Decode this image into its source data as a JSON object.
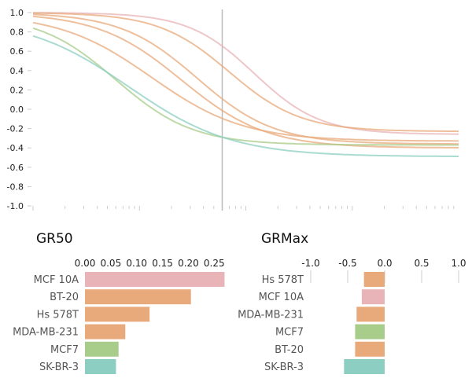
{
  "colors": {
    "pink": "#e8b4b8",
    "orange": "#e8a97b",
    "green": "#a8cc8a",
    "teal": "#8ccfc2",
    "vline": "#bbbbbb",
    "axis": "#cccccc"
  },
  "chart_data": [
    {
      "type": "line",
      "name": "dose-response",
      "ylim": [
        -1.0,
        1.0
      ],
      "yticks": [
        "1.0",
        "0.8",
        "0.6",
        "0.4",
        "0.2",
        "0.0",
        "-0.2",
        "-0.4",
        "-0.6",
        "-0.8",
        "-1.0"
      ],
      "xscale": "log",
      "xlim": [
        0.001,
        10
      ],
      "vline_x": 0.06,
      "grid": false,
      "series": [
        {
          "color": "pink",
          "values": {
            "top": 1.0,
            "bottom": -0.26,
            "ec50": 0.12,
            "hill": 1.4
          }
        },
        {
          "color": "orange",
          "values": {
            "top": 1.0,
            "bottom": -0.23,
            "ec50": 0.07,
            "hill": 1.3
          }
        },
        {
          "color": "orange",
          "values": {
            "top": 1.0,
            "bottom": -0.36,
            "ec50": 0.035,
            "hill": 1.2
          }
        },
        {
          "color": "orange",
          "values": {
            "top": 1.0,
            "bottom": -0.4,
            "ec50": 0.025,
            "hill": 1.1
          }
        },
        {
          "color": "orange",
          "values": {
            "top": 0.99,
            "bottom": -0.33,
            "ec50": 0.013,
            "hill": 1.0
          }
        },
        {
          "color": "green",
          "values": {
            "top": 0.98,
            "bottom": -0.37,
            "ec50": 0.006,
            "hill": 1.2
          }
        },
        {
          "color": "teal",
          "values": {
            "top": 0.95,
            "bottom": -0.49,
            "ec50": 0.008,
            "hill": 0.9
          }
        }
      ]
    },
    {
      "type": "bar",
      "name": "GR50",
      "title": "GR50",
      "xlim": [
        0.0,
        0.28
      ],
      "xticks": [
        "0.00",
        "0.05",
        "0.10",
        "0.15",
        "0.20",
        "0.25"
      ],
      "xtick_values": [
        0.0,
        0.05,
        0.1,
        0.15,
        0.2,
        0.25
      ],
      "categories": [
        "MCF 10A",
        "BT-20",
        "Hs 578T",
        "MDA-MB-231",
        "MCF7",
        "SK-BR-3"
      ],
      "values": [
        0.27,
        0.205,
        0.125,
        0.078,
        0.065,
        0.06
      ],
      "colors": [
        "pink",
        "orange",
        "orange",
        "orange",
        "green",
        "teal"
      ]
    },
    {
      "type": "bar",
      "name": "GRMax",
      "title": "GRMax",
      "xlim": [
        -1.0,
        1.0
      ],
      "xticks": [
        "-1.0",
        "-0.5",
        "0.0",
        "0.5",
        "1.0"
      ],
      "xtick_values": [
        -1.0,
        -0.5,
        0.0,
        0.5,
        1.0
      ],
      "categories": [
        "Hs 578T",
        "MCF 10A",
        "MDA-MB-231",
        "MCF7",
        "BT-20",
        "SK-BR-3"
      ],
      "values": [
        -0.28,
        -0.31,
        -0.38,
        -0.4,
        -0.4,
        -0.55
      ],
      "colors": [
        "orange",
        "pink",
        "orange",
        "green",
        "orange",
        "teal"
      ]
    }
  ]
}
